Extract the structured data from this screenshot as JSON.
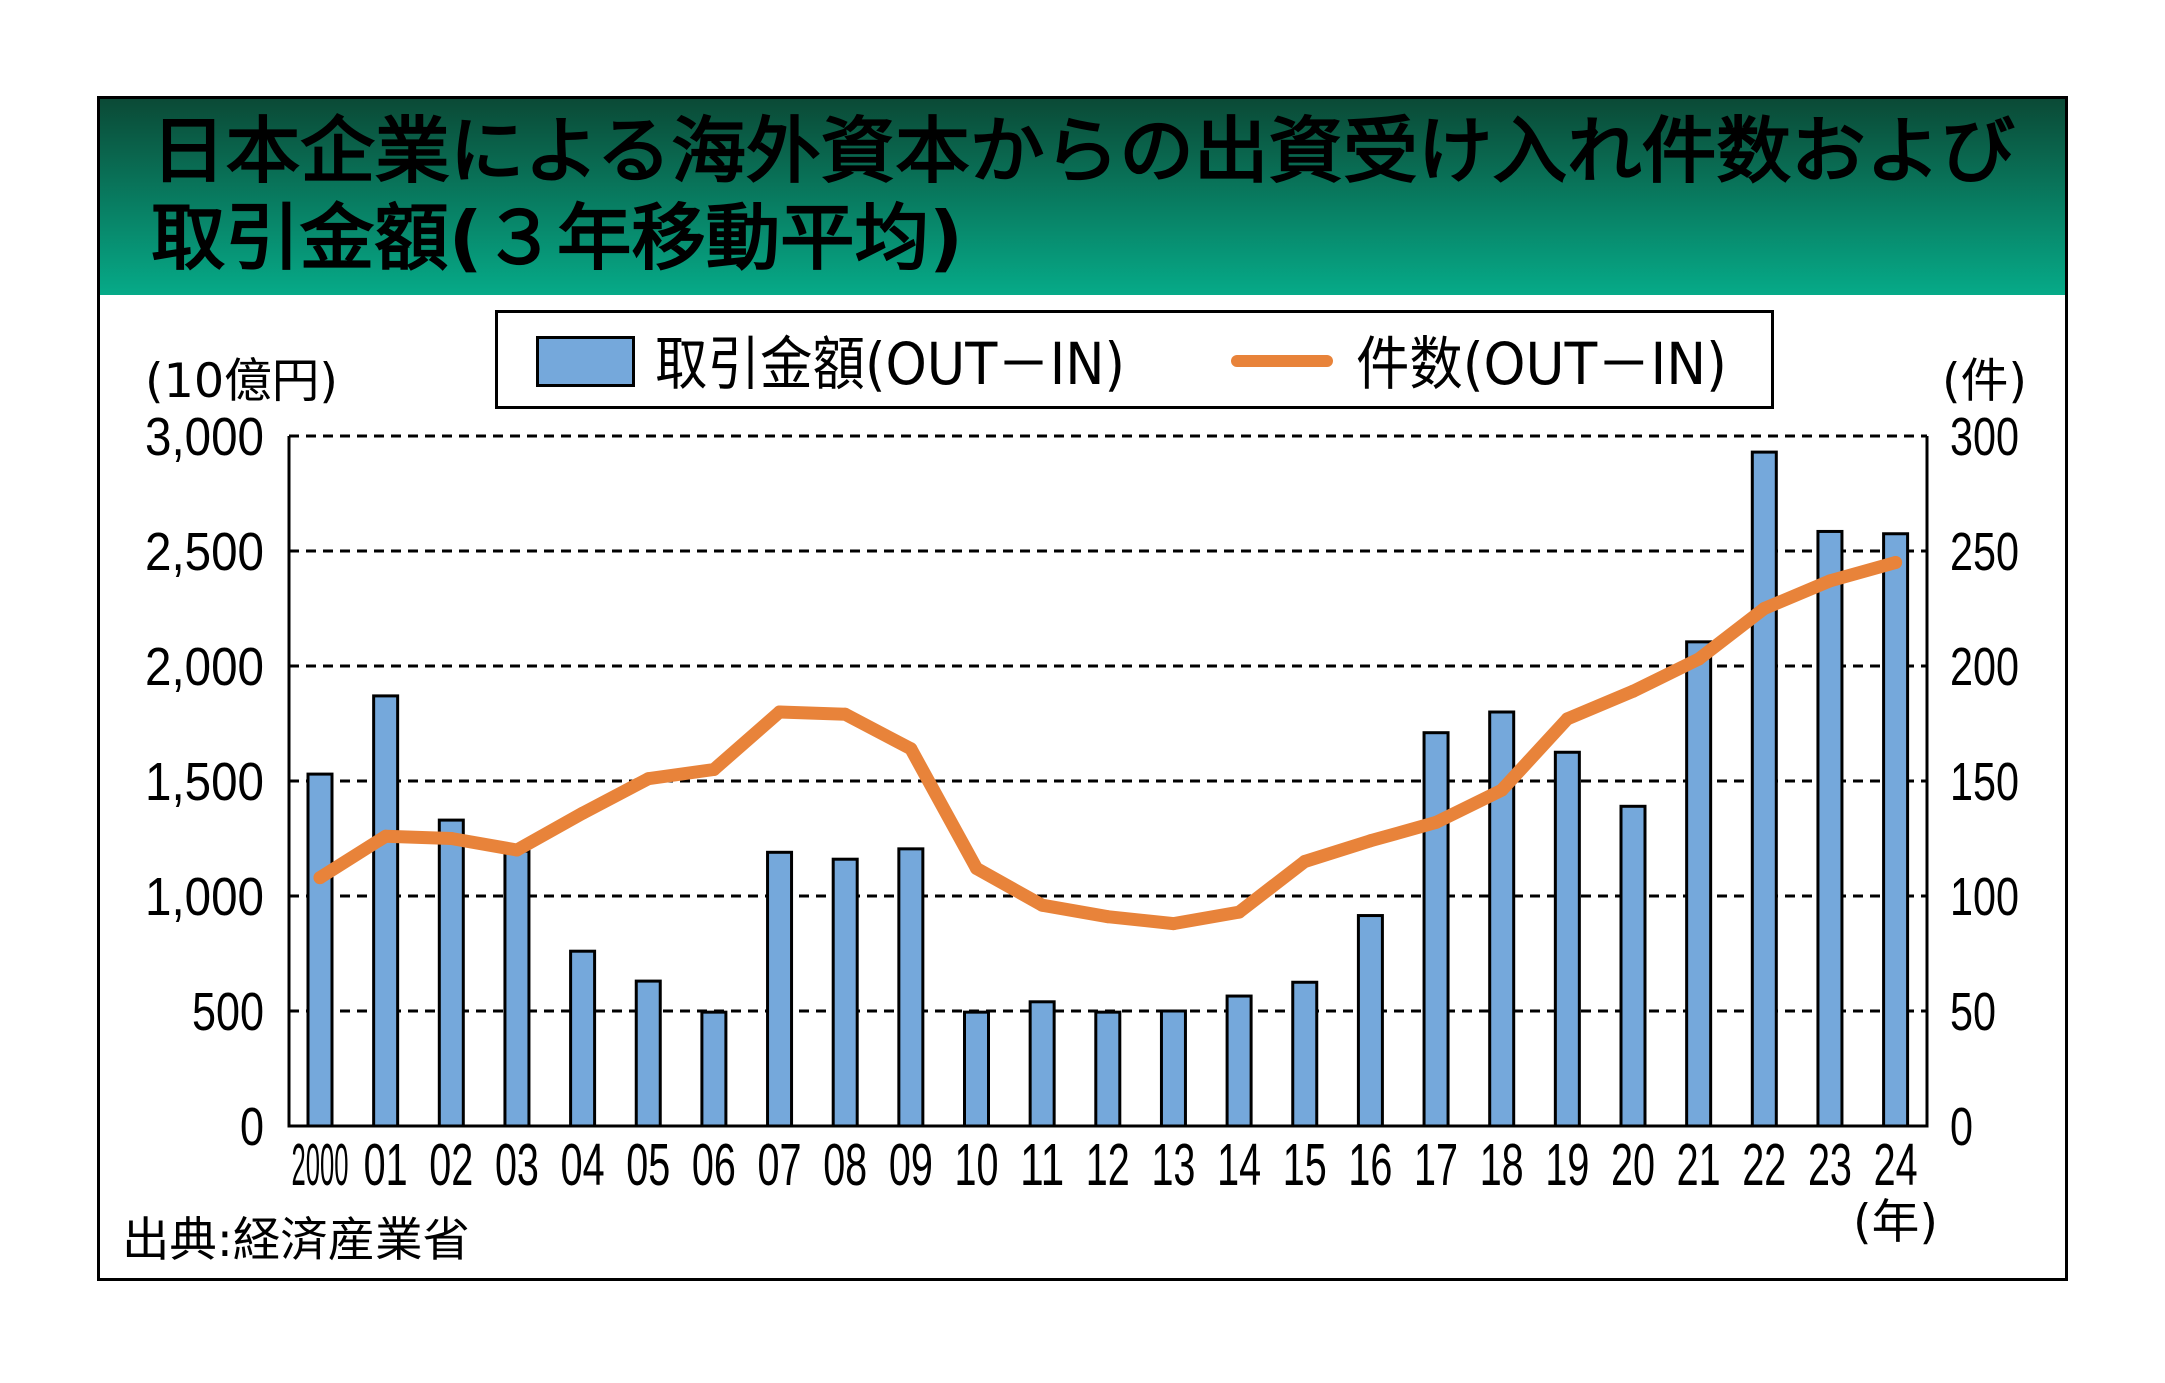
{
  "colors": {
    "header_top": "#0b4a36",
    "header_bottom": "#06aa88",
    "title_text": "#ffffff",
    "bar_fill": "#75a8db",
    "line": "#e8833a",
    "frame": "#000000"
  },
  "chart_data": {
    "type": "bar",
    "title_lines": [
      "日本企業による海外資本からの出資受け入れ件数および",
      "取引金額(３年移動平均)"
    ],
    "categories": [
      "2000",
      "01",
      "02",
      "03",
      "04",
      "05",
      "06",
      "07",
      "08",
      "09",
      "10",
      "11",
      "12",
      "13",
      "14",
      "15",
      "16",
      "17",
      "18",
      "19",
      "20",
      "21",
      "22",
      "23",
      "24"
    ],
    "xlabel": "(年)",
    "ylabel": "(10億円)",
    "ylabel_right": "(件)",
    "ylim": [
      0,
      3000
    ],
    "ylim_right": [
      0,
      300
    ],
    "yticks": [
      0,
      500,
      1000,
      1500,
      2000,
      2500,
      3000
    ],
    "ytick_labels": [
      "0",
      "500",
      "1,000",
      "1,500",
      "2,000",
      "2,500",
      "3,000"
    ],
    "yticks_right": [
      0,
      50,
      100,
      150,
      200,
      250,
      300
    ],
    "ytick_labels_right": [
      "0",
      "50",
      "100",
      "150",
      "200",
      "250",
      "300"
    ],
    "grid": true,
    "legend_position": "top",
    "series": [
      {
        "name": "取引金額(OUT－IN)",
        "type": "bar",
        "values": [
          1530,
          1870,
          1330,
          1195,
          760,
          630,
          495,
          1190,
          1160,
          1205,
          495,
          540,
          495,
          500,
          565,
          625,
          915,
          1710,
          1800,
          1625,
          1390,
          2105,
          2930,
          2585,
          2575
        ]
      },
      {
        "name": "件数(OUT－IN)",
        "type": "line",
        "values": [
          108,
          126,
          125,
          120,
          136,
          151,
          155,
          180,
          179,
          164,
          112,
          96,
          91,
          88,
          93,
          115,
          124,
          132,
          146,
          177,
          189,
          203,
          225,
          237,
          245
        ]
      }
    ],
    "source": "出典:経済産業省"
  }
}
